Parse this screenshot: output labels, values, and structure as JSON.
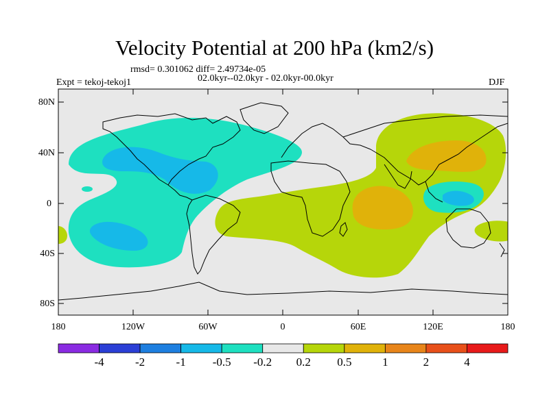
{
  "title": "Velocity Potential at 200 hPa (km2/s)",
  "stats": "rmsd= 0.301062 diff= 2.49734e-05",
  "period": "02.0kyr--02.0kyr - 02.0kyr-00.0kyr",
  "experiment": "Expt = tekoj-tekoj1",
  "season": "DJF",
  "lat_labels": [
    "80N",
    "40N",
    "0",
    "40S",
    "80S"
  ],
  "lon_labels": [
    "180",
    "120W",
    "60W",
    "0",
    "60E",
    "120E",
    "180"
  ],
  "colorbar": {
    "labels": [
      "-4",
      "-2",
      "-1",
      "-0.5",
      "-0.2",
      "0.2",
      "0.5",
      "1",
      "2",
      "4"
    ],
    "colors": [
      "#8a2be2",
      "#2b3fd6",
      "#1e7fe0",
      "#16b9e8",
      "#1ee0c0",
      "#e8e8e8",
      "#b6d60a",
      "#e0b20a",
      "#e8851a",
      "#e8501a",
      "#e81a1a"
    ]
  },
  "map_colors": {
    "background": "#e8e8e8",
    "neg_weak": "#1ee0c0",
    "neg_mid": "#16b9e8",
    "pos_weak": "#b6d60a",
    "pos_mid": "#e0b20a"
  }
}
